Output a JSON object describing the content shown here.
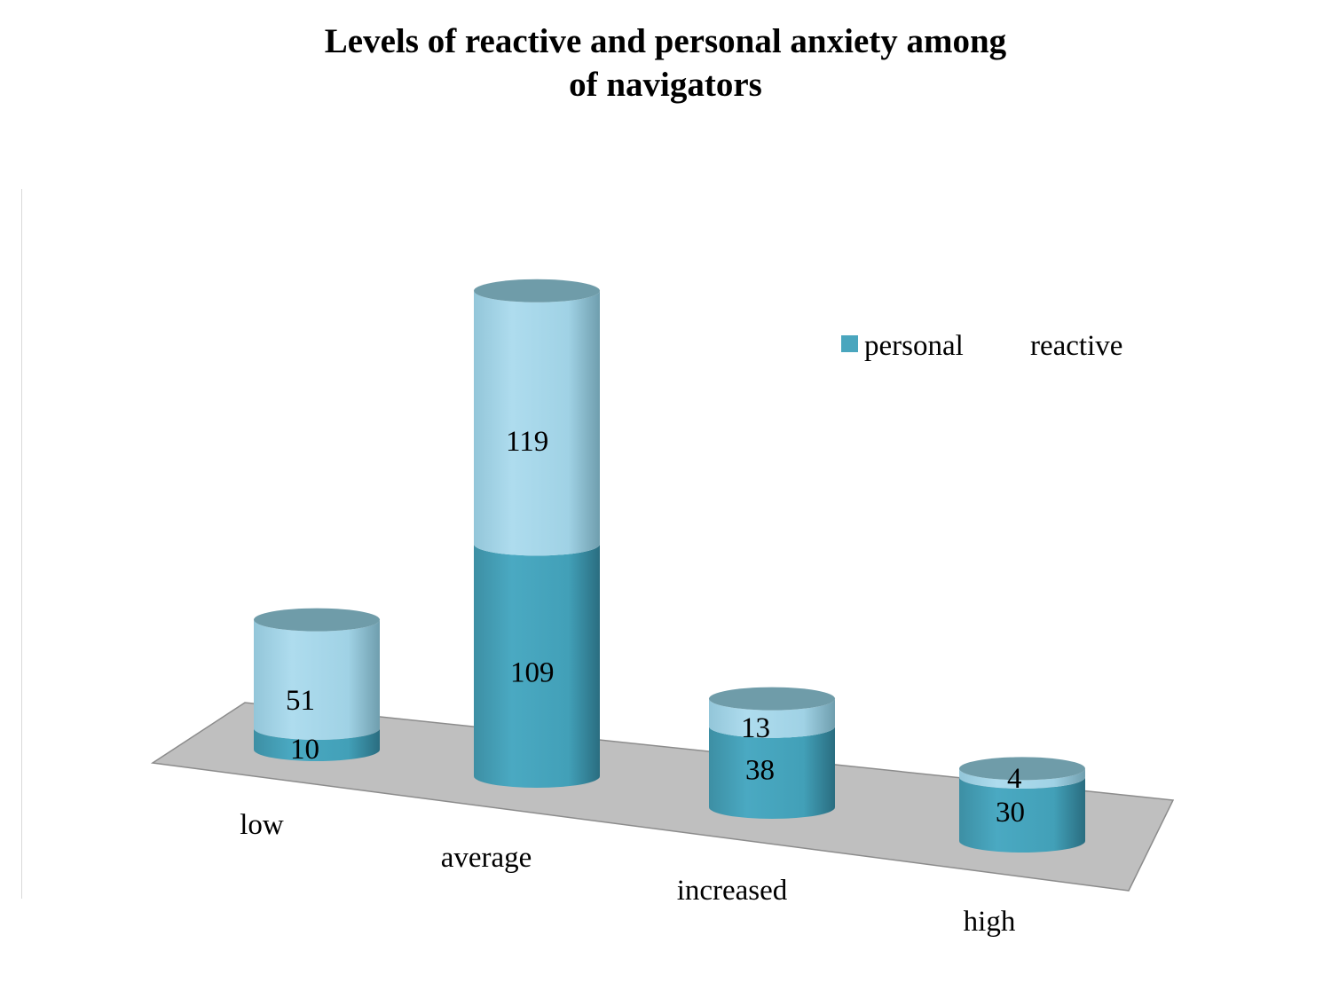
{
  "chart_data": {
    "type": "bar",
    "title_lines": [
      "Levels of reactive and personal anxiety among",
      "of navigators"
    ],
    "categories": [
      "low",
      "average",
      "increased",
      "high"
    ],
    "series": [
      {
        "name": "personal",
        "values": [
          10,
          109,
          38,
          30
        ],
        "color": "#4aa6be"
      },
      {
        "name": "reactive",
        "values": [
          51,
          119,
          13,
          4
        ],
        "color": "#a4d6ea"
      }
    ],
    "stacked": true,
    "style": "3d-cylinder",
    "legend_position": "top-right",
    "grid": false,
    "colors": {
      "floor": "#bfbfbf",
      "cap": "#6f9ca9"
    }
  }
}
